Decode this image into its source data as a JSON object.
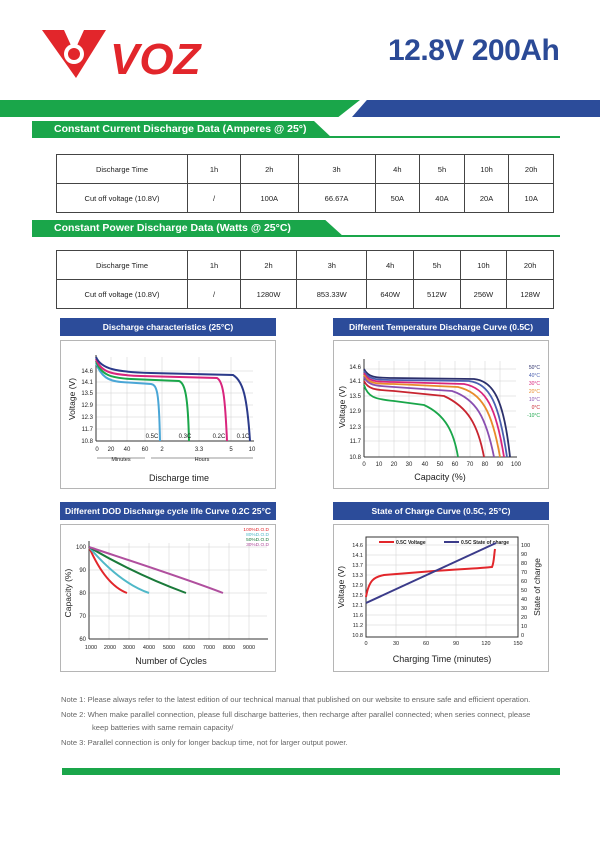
{
  "brand": {
    "name": "VOZ"
  },
  "title": "12.8V 200Ah",
  "colors": {
    "green": "#1aa64a",
    "blue": "#2c4c9a",
    "red": "#e2262b"
  },
  "current_section": {
    "heading": "Constant Current Discharge Data (Amperes @ 25°)",
    "row1": [
      "Discharge Time",
      "1h",
      "2h",
      "3h",
      "4h",
      "5h",
      "10h",
      "20h"
    ],
    "row2": [
      "Cut off voltage (10.8V)",
      "/",
      "100A",
      "66.67A",
      "50A",
      "40A",
      "20A",
      "10A"
    ]
  },
  "power_section": {
    "heading": "Constant Power Discharge Data (Watts @ 25°C)",
    "row1": [
      "Discharge Time",
      "1h",
      "2h",
      "3h",
      "4h",
      "5h",
      "10h",
      "20h"
    ],
    "row2": [
      "Cut off voltage (10.8V)",
      "/",
      "1280W",
      "853.33W",
      "640W",
      "512W",
      "256W",
      "128W"
    ]
  },
  "charts": [
    {
      "title": "Discharge characteristics (25°C)",
      "ylabel": "Voltage (V)",
      "xlabel": "Discharge time",
      "yticks": [
        "14.6",
        "14.1",
        "13.5",
        "12.9",
        "12.3",
        "11.7",
        "10.8"
      ],
      "xticks": [
        "0",
        "20",
        "40",
        "60",
        "2",
        "3.3",
        "5",
        "10"
      ],
      "xunits": [
        "Minutes",
        "Hours"
      ],
      "curve_labels": [
        "0.5C",
        "0.3C",
        "0.2C",
        "0.1C"
      ]
    },
    {
      "title": "Different Temperature Discharge Curve (0.5C)",
      "ylabel": "Voltage (V)",
      "xlabel": "Capacity (%)",
      "yticks": [
        "14.6",
        "14.1",
        "13.5",
        "12.9",
        "12.3",
        "11.7",
        "10.8"
      ],
      "xticks": [
        "0",
        "10",
        "20",
        "30",
        "40",
        "50",
        "60",
        "70",
        "80",
        "90",
        "100"
      ],
      "legend": [
        "50°C",
        "40°C",
        "30°C",
        "20°C",
        "10°C",
        "0°C",
        "-10°C"
      ]
    },
    {
      "title": "Different DOD Discharge cycle life Curve 0.2C 25°C",
      "ylabel": "Capacity (%)",
      "xlabel": "Number of Cycles",
      "yticks": [
        "100",
        "90",
        "80",
        "70",
        "60"
      ],
      "xticks": [
        "1000",
        "2000",
        "3000",
        "4000",
        "5000",
        "6000",
        "7000",
        "8000",
        "9000",
        "10000",
        "12000"
      ],
      "legend": [
        "100%D.O.D",
        "80%D.O.D",
        "50%D.O.D",
        "30%D.O.D"
      ]
    },
    {
      "title": "State of Charge Curve (0.5C, 25°C)",
      "ylabel": "Voltage (V)",
      "y2label": "State of charge",
      "xlabel": "Charging Time (minutes)",
      "yticks": [
        "14.6",
        "14.1",
        "13.7",
        "13.3",
        "12.9",
        "12.5",
        "12.1",
        "11.6",
        "11.2",
        "10.8"
      ],
      "y2ticks": [
        "100",
        "90",
        "80",
        "70",
        "60",
        "50",
        "40",
        "30",
        "20",
        "10",
        "0"
      ],
      "xticks": [
        "0",
        "30",
        "60",
        "90",
        "120",
        "150"
      ],
      "legend": [
        "0.5C Voltage",
        "0.5C State of charge"
      ]
    }
  ],
  "notes": [
    "Note 1: Please always refer to the latest edition of our technical manual that published on our website to ensure safe and efficient operation.",
    "Note 2: When make parallel connection, please full discharge batteries, then recharge after parallel connected; when series connect, please",
    "keep batteries with same remain capacity/",
    "Note 3: Parallel connection is only for longer backup time, not for larger output power."
  ]
}
